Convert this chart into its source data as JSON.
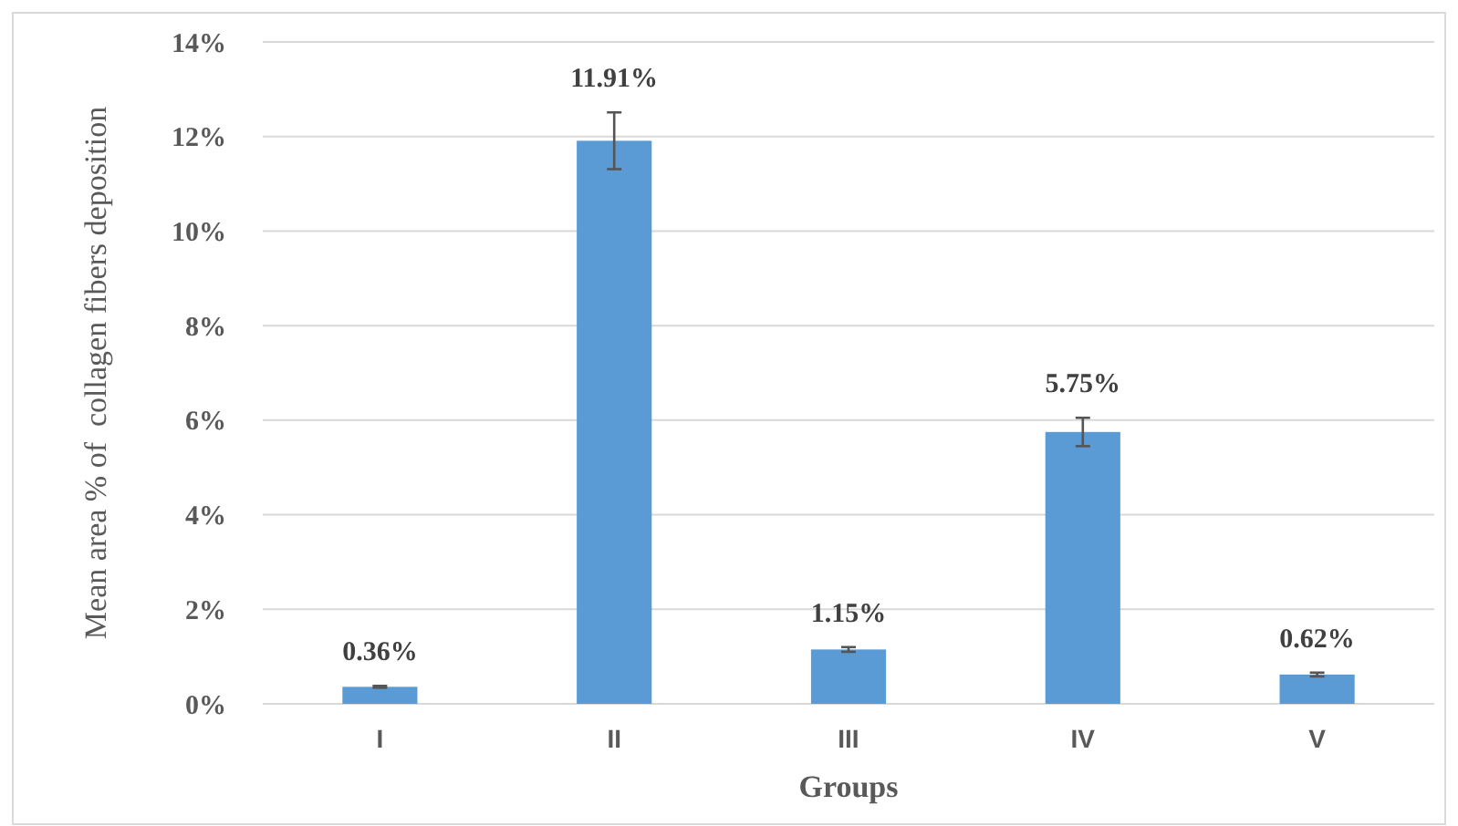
{
  "chart_data": {
    "type": "bar",
    "xlabel": "Groups",
    "ylabel": "Mean area % of  collagen fibers deposition",
    "categories": [
      "I",
      "II",
      "III",
      "IV",
      "V"
    ],
    "values": [
      0.36,
      11.91,
      1.15,
      5.75,
      0.62
    ],
    "errors": [
      0.02,
      0.6,
      0.05,
      0.3,
      0.04
    ],
    "value_labels": [
      "0.36%",
      "11.91%",
      "1.15%",
      "5.75%",
      "0.62%"
    ],
    "color": "#5b9bd5",
    "ylim": [
      0,
      14
    ],
    "yticks": [
      {
        "value": 0,
        "label": "0%"
      },
      {
        "value": 2,
        "label": "2%"
      },
      {
        "value": 4,
        "label": "4%"
      },
      {
        "value": 6,
        "label": "6%"
      },
      {
        "value": 8,
        "label": "8%"
      },
      {
        "value": 10,
        "label": "10%"
      },
      {
        "value": 12,
        "label": "12%"
      },
      {
        "value": 14,
        "label": "14%"
      }
    ],
    "grid": "y"
  }
}
